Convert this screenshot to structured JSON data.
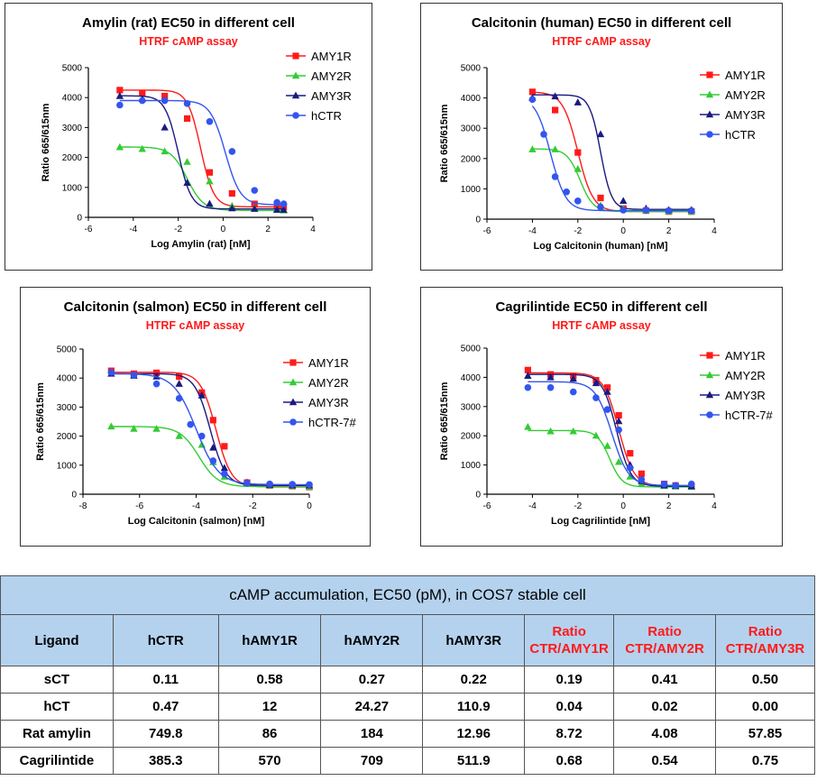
{
  "colors": {
    "AMY1R": "#ff1a1a",
    "AMY2R": "#33cc33",
    "AMY3R": "#1a1a80",
    "hCTR": "#3355ee",
    "subtitle": "#ff1a1a",
    "table_header": "#b4d2ee"
  },
  "chart_data": [
    {
      "type": "scatter",
      "title": "Amylin (rat) EC50 in different cell",
      "subtitle": "HTRF cAMP assay",
      "xlabel": "Log Amylin (rat) [nM]",
      "ylabel": "Ratio 665/615nm",
      "xlim": [
        -6,
        4
      ],
      "ylim": [
        0,
        5000
      ],
      "xticks": [
        "-6",
        "-4",
        "-2",
        "0",
        "2",
        "4"
      ],
      "yticks": [
        "0",
        "1000",
        "2000",
        "3000",
        "4000",
        "5000"
      ],
      "series": [
        {
          "name": "AMY1R",
          "marker": "square",
          "top": 4250,
          "bottom": 350,
          "logEC50": -1.0,
          "hill": 1.5,
          "x": [
            -4.6,
            -3.6,
            -2.6,
            -1.6,
            -0.6,
            0.4,
            1.4,
            2.4,
            2.7
          ],
          "y": [
            4250,
            4150,
            4050,
            3300,
            1500,
            800,
            450,
            380,
            350
          ]
        },
        {
          "name": "AMY2R",
          "marker": "triangle",
          "top": 2350,
          "bottom": 230,
          "logEC50": -1.6,
          "hill": 1.2,
          "x": [
            -4.6,
            -3.6,
            -2.6,
            -1.6,
            -0.6,
            0.4,
            1.4,
            2.4,
            2.7
          ],
          "y": [
            2340,
            2280,
            2200,
            1850,
            1200,
            380,
            300,
            250,
            230
          ]
        },
        {
          "name": "AMY3R",
          "marker": "triangle",
          "top": 4060,
          "bottom": 280,
          "logEC50": -2.0,
          "hill": 1.5,
          "x": [
            -4.6,
            -3.6,
            -2.6,
            -1.6,
            -0.6,
            0.4,
            1.4,
            2.4,
            2.7
          ],
          "y": [
            4050,
            3950,
            3000,
            1150,
            450,
            300,
            280,
            250,
            250
          ]
        },
        {
          "name": "hCTR",
          "marker": "circle",
          "top": 3900,
          "bottom": 420,
          "logEC50": 0.1,
          "hill": 1.3,
          "x": [
            -4.6,
            -3.6,
            -2.6,
            -1.6,
            -0.6,
            0.4,
            1.4,
            2.4,
            2.7
          ],
          "y": [
            3750,
            3900,
            3900,
            3800,
            3200,
            2200,
            900,
            500,
            450
          ]
        }
      ]
    },
    {
      "type": "scatter",
      "title": "Calcitonin (human) EC50 in different cell",
      "subtitle": "HTRF cAMP assay",
      "xlabel": "Log Calcitonin (human) [nM]",
      "ylabel": "Ratio 665/615nm",
      "xlim": [
        -6,
        4
      ],
      "ylim": [
        0,
        5000
      ],
      "xticks": [
        "-6",
        "-4",
        "-2",
        "0",
        "2",
        "4"
      ],
      "yticks": [
        "0",
        "1000",
        "2000",
        "3000",
        "4000",
        "5000"
      ],
      "series": [
        {
          "name": "AMY1R",
          "marker": "square",
          "top": 4200,
          "bottom": 250,
          "logEC50": -2.0,
          "hill": 1.3,
          "x": [
            -4,
            -3,
            -2,
            -1,
            0,
            1,
            2,
            3
          ],
          "y": [
            4200,
            3600,
            2200,
            700,
            350,
            280,
            250,
            250
          ]
        },
        {
          "name": "AMY2R",
          "marker": "triangle",
          "top": 2320,
          "bottom": 250,
          "logEC50": -1.9,
          "hill": 1.5,
          "x": [
            -4,
            -3,
            -2,
            -1,
            0,
            1,
            2,
            3
          ],
          "y": [
            2300,
            2300,
            1650,
            450,
            350,
            280,
            250,
            250
          ]
        },
        {
          "name": "AMY3R",
          "marker": "triangle",
          "top": 4100,
          "bottom": 320,
          "logEC50": -1.0,
          "hill": 1.8,
          "x": [
            -4,
            -3,
            -2,
            -1,
            0,
            1,
            2,
            3
          ],
          "y": [
            4000,
            4050,
            3850,
            2800,
            600,
            350,
            300,
            300
          ]
        },
        {
          "name": "hCTR",
          "marker": "circle",
          "top": 4050,
          "bottom": 280,
          "logEC50": -3.2,
          "hill": 1.3,
          "x": [
            -4,
            -3.5,
            -3,
            -2.5,
            -2,
            -1,
            0,
            1,
            2,
            3
          ],
          "y": [
            3950,
            2800,
            1400,
            900,
            600,
            400,
            300,
            300,
            280,
            280
          ]
        }
      ]
    },
    {
      "type": "scatter",
      "title": "Calcitonin (salmon) EC50 in different cell",
      "subtitle": "HTRF cAMP assay",
      "xlabel": "Log Calcitonin (salmon) [nM]",
      "ylabel": "Ratio 665/615nm",
      "xlim": [
        -8,
        0
      ],
      "ylim": [
        0,
        5000
      ],
      "xticks": [
        "-8",
        "-6",
        "-4",
        "-2",
        "0"
      ],
      "yticks": [
        "0",
        "1000",
        "2000",
        "3000",
        "4000",
        "5000"
      ],
      "series": [
        {
          "name": "AMY1R",
          "marker": "square",
          "top": 4200,
          "bottom": 250,
          "logEC50": -3.3,
          "hill": 1.6,
          "x": [
            -7,
            -6.2,
            -5.4,
            -4.6,
            -3.8,
            -3.4,
            -3.0,
            -2.2,
            -1.4,
            -0.6,
            0
          ],
          "y": [
            4250,
            4150,
            4180,
            4050,
            3500,
            2550,
            1650,
            400,
            300,
            280,
            250
          ]
        },
        {
          "name": "AMY2R",
          "marker": "triangle",
          "top": 2330,
          "bottom": 260,
          "logEC50": -3.9,
          "hill": 1.3,
          "x": [
            -7,
            -6.2,
            -5.4,
            -4.6,
            -3.8,
            -3.4,
            -3.0,
            -2.2,
            -1.4,
            -0.6,
            0
          ],
          "y": [
            2330,
            2250,
            2250,
            2000,
            1700,
            1100,
            600,
            350,
            300,
            280,
            260
          ]
        },
        {
          "name": "AMY3R",
          "marker": "triangle",
          "top": 4150,
          "bottom": 300,
          "logEC50": -3.5,
          "hill": 1.6,
          "x": [
            -7,
            -6.2,
            -5.4,
            -4.6,
            -3.8,
            -3.4,
            -3.0,
            -2.2,
            -1.4,
            -0.6,
            0
          ],
          "y": [
            4150,
            4080,
            4050,
            3800,
            3400,
            1600,
            900,
            400,
            320,
            300,
            300
          ]
        },
        {
          "name": "hCTR-7#",
          "marker": "circle",
          "top": 4150,
          "bottom": 330,
          "logEC50": -4.0,
          "hill": 1.1,
          "x": [
            -7,
            -6.2,
            -5.4,
            -4.6,
            -4.2,
            -3.8,
            -3.4,
            -3.0,
            -2.2,
            -1.4,
            -0.6,
            0
          ],
          "y": [
            4200,
            4100,
            3800,
            3300,
            2400,
            2000,
            1150,
            700,
            380,
            350,
            340,
            330
          ]
        }
      ]
    },
    {
      "type": "scatter",
      "title": "Cagrilintide EC50 in different cell",
      "subtitle": "HRTF cAMP  assay",
      "xlabel": "Log Cagrilintide [nM]",
      "ylabel": "Ratio 665/615nm",
      "xlim": [
        -6,
        4
      ],
      "ylim": [
        0,
        5000
      ],
      "xticks": [
        "-6",
        "-4",
        "-2",
        "0",
        "2",
        "4"
      ],
      "yticks": [
        "0",
        "1000",
        "2000",
        "3000",
        "4000",
        "5000"
      ],
      "series": [
        {
          "name": "AMY1R",
          "marker": "square",
          "top": 4150,
          "bottom": 280,
          "logEC50": -0.2,
          "hill": 1.3,
          "x": [
            -4.2,
            -3.2,
            -2.2,
            -1.2,
            -0.7,
            -0.2,
            0.3,
            0.8,
            1.8,
            2.3,
            3.0
          ],
          "y": [
            4250,
            4100,
            4050,
            3900,
            3650,
            2700,
            1400,
            700,
            350,
            300,
            280
          ]
        },
        {
          "name": "AMY2R",
          "marker": "triangle",
          "top": 2180,
          "bottom": 250,
          "logEC50": -0.6,
          "hill": 1.6,
          "x": [
            -4.2,
            -3.2,
            -2.2,
            -1.2,
            -0.7,
            -0.2,
            0.3,
            0.8,
            1.8,
            2.3,
            3.0
          ],
          "y": [
            2300,
            2150,
            2150,
            2000,
            1650,
            1100,
            600,
            350,
            280,
            260,
            250
          ]
        },
        {
          "name": "AMY3R",
          "marker": "triangle",
          "top": 4100,
          "bottom": 270,
          "logEC50": -0.3,
          "hill": 1.4,
          "x": [
            -4.2,
            -3.2,
            -2.2,
            -1.2,
            -0.7,
            -0.2,
            0.3,
            0.8,
            1.8,
            2.3,
            3.0
          ],
          "y": [
            4050,
            4000,
            3950,
            3800,
            3500,
            2500,
            1000,
            450,
            300,
            280,
            270
          ]
        },
        {
          "name": "hCTR-7#",
          "marker": "circle",
          "top": 3850,
          "bottom": 300,
          "logEC50": -0.5,
          "hill": 1.2,
          "x": [
            -4.2,
            -3.2,
            -2.2,
            -1.2,
            -0.7,
            -0.2,
            0.3,
            0.8,
            1.8,
            2.3,
            3.0
          ],
          "y": [
            3650,
            3650,
            3500,
            3300,
            2900,
            2200,
            900,
            500,
            350,
            300,
            350
          ]
        }
      ]
    }
  ],
  "table": {
    "caption": "cAMP accumulation, EC50 (pM), in COS7 stable cell",
    "headers": [
      {
        "line1": "Ligand",
        "line2": "",
        "red": false
      },
      {
        "line1": "hCTR",
        "line2": "",
        "red": false
      },
      {
        "line1": "hAMY1R",
        "line2": "",
        "red": false
      },
      {
        "line1": "hAMY2R",
        "line2": "",
        "red": false
      },
      {
        "line1": "hAMY3R",
        "line2": "",
        "red": false
      },
      {
        "line1": "Ratio",
        "line2": "CTR/AMY1R",
        "red": true
      },
      {
        "line1": "Ratio",
        "line2": "CTR/AMY2R",
        "red": true
      },
      {
        "line1": "Ratio",
        "line2": "CTR/AMY3R",
        "red": true
      }
    ],
    "rows": [
      [
        "sCT",
        "0.11",
        "0.58",
        "0.27",
        "0.22",
        "0.19",
        "0.41",
        "0.50"
      ],
      [
        "hCT",
        "0.47",
        "12",
        "24.27",
        "110.9",
        "0.04",
        "0.02",
        "0.00"
      ],
      [
        "Rat amylin",
        "749.8",
        "86",
        "184",
        "12.96",
        "8.72",
        "4.08",
        "57.85"
      ],
      [
        "Cagrilintide",
        "385.3",
        "570",
        "709",
        "511.9",
        "0.68",
        "0.54",
        "0.75"
      ]
    ]
  }
}
